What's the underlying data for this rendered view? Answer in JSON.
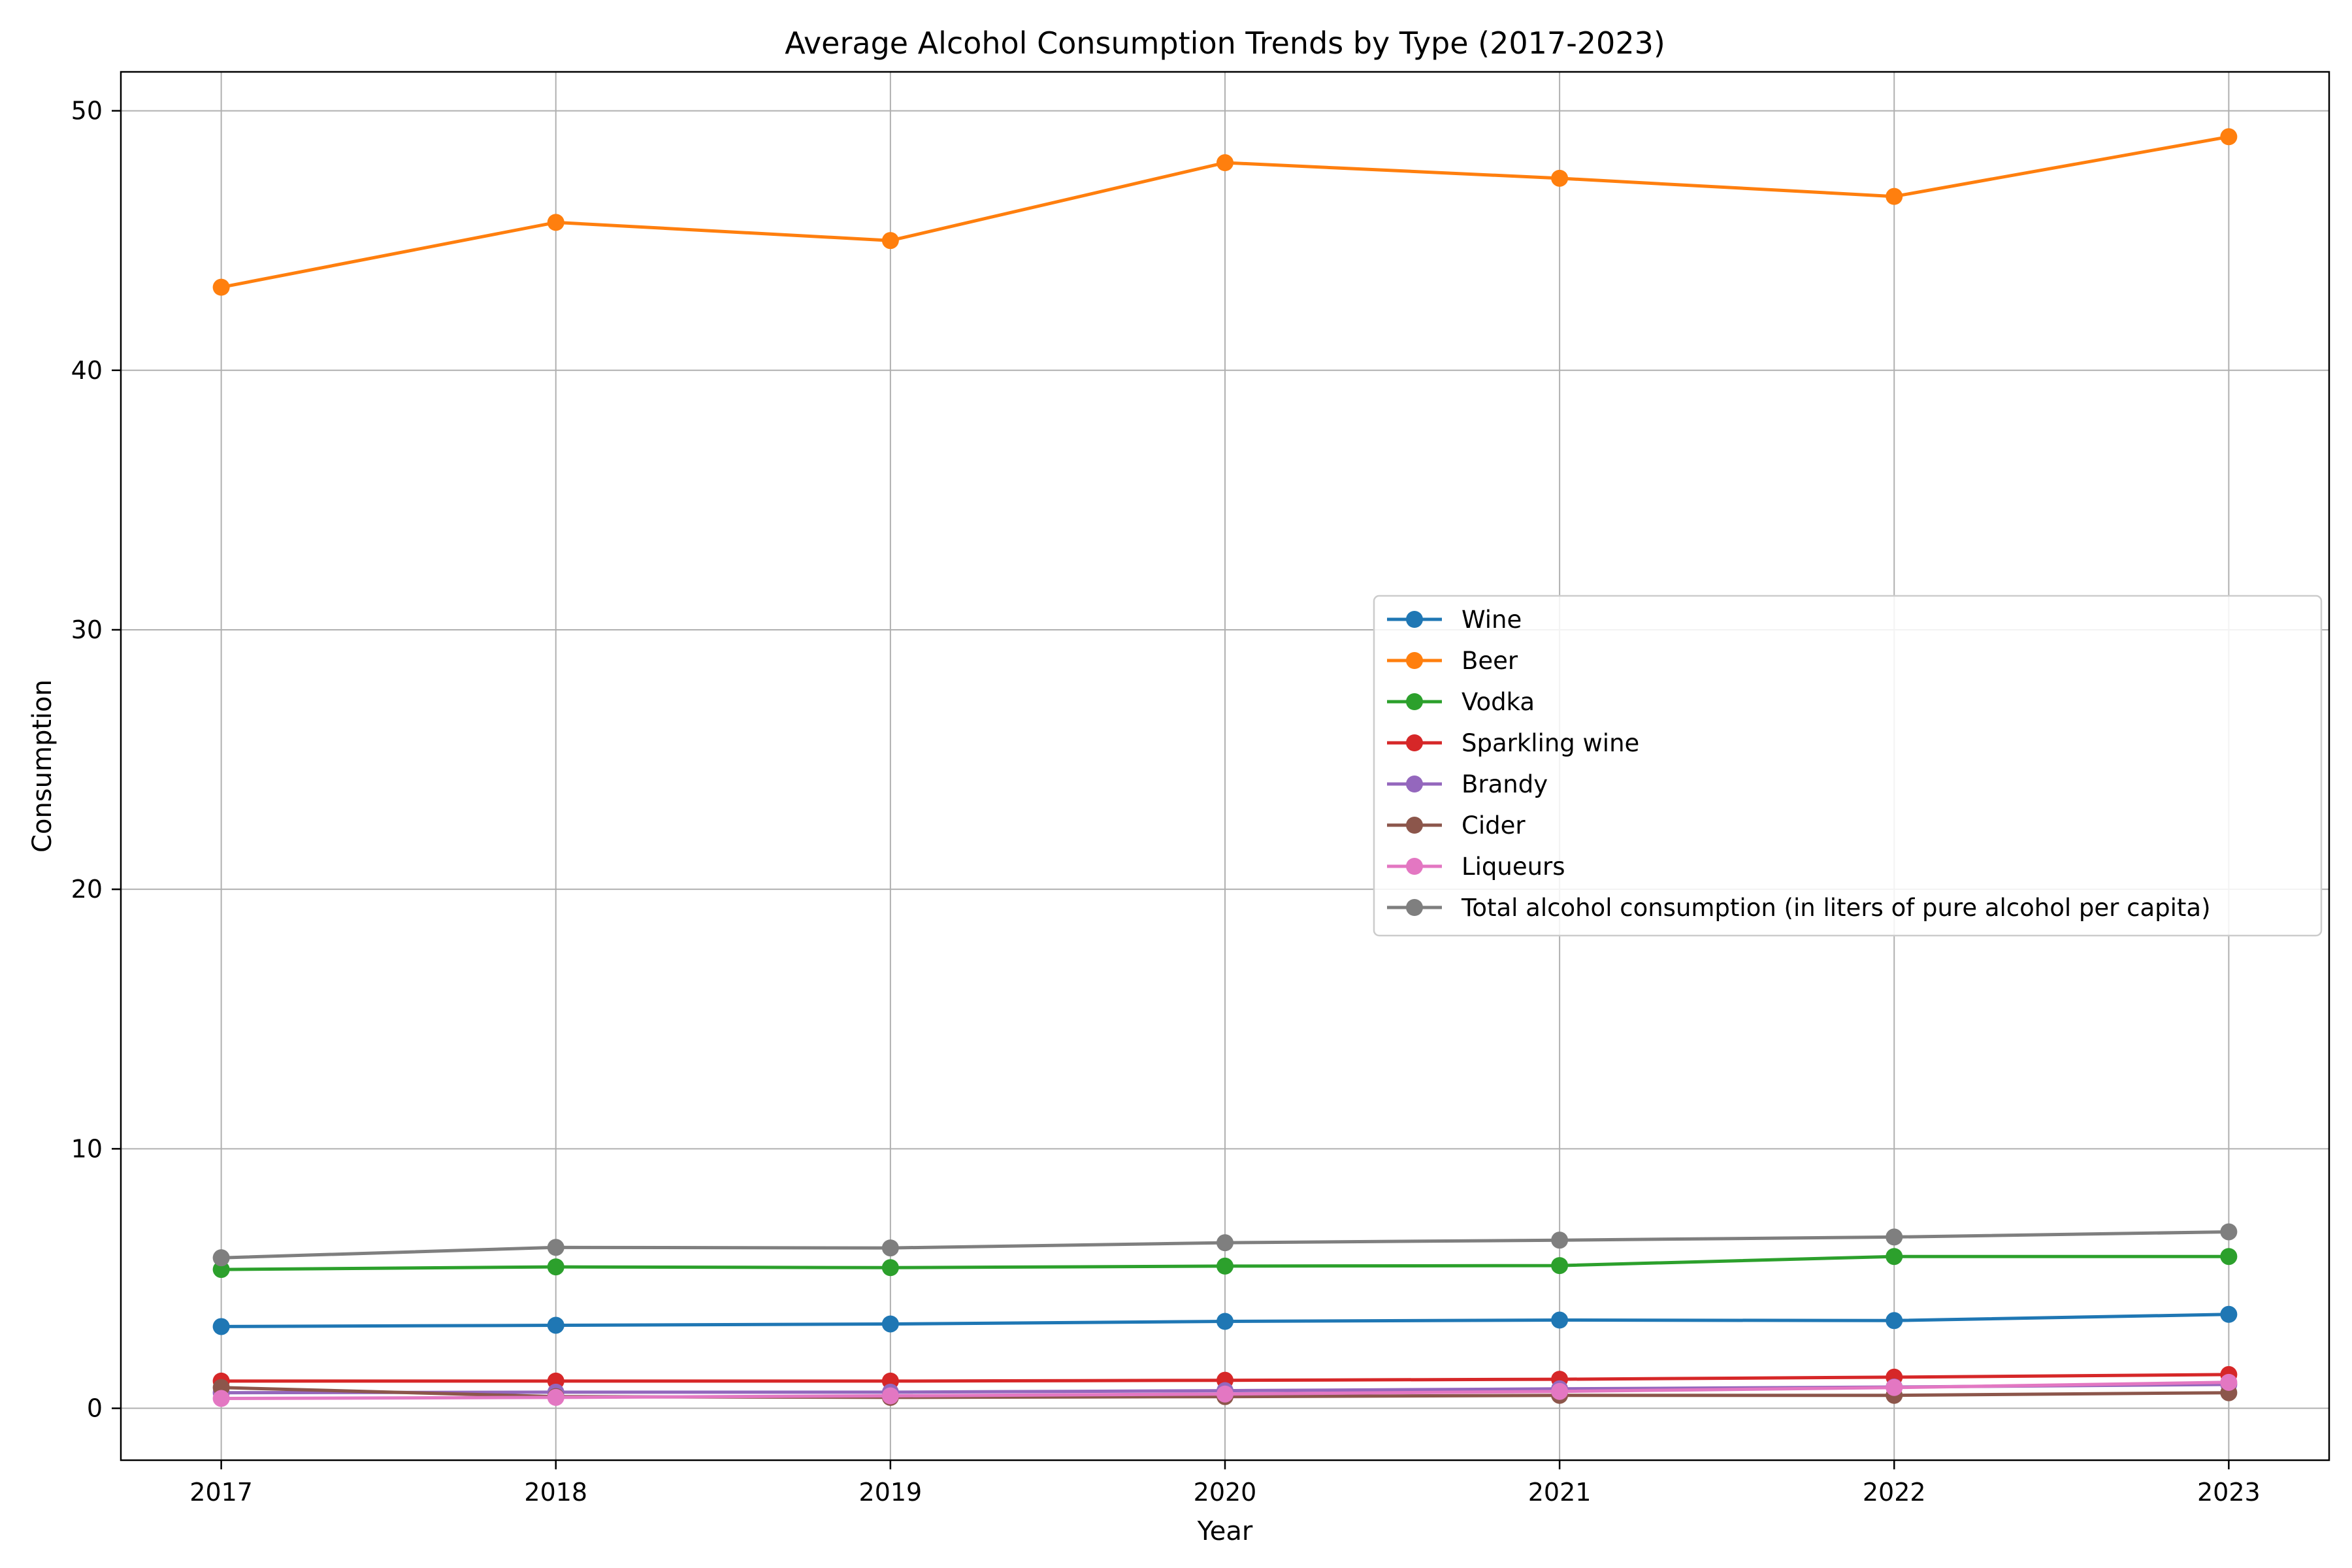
{
  "chart_data": {
    "type": "line",
    "title": "Average Alcohol Consumption Trends by Type (2017-2023)",
    "xlabel": "Year",
    "ylabel": "Consumption",
    "x": [
      2017,
      2018,
      2019,
      2020,
      2021,
      2022,
      2023
    ],
    "ylim": [
      -2,
      51.5
    ],
    "yticks": [
      0,
      10,
      20,
      30,
      40,
      50
    ],
    "grid": true,
    "legend_position": "center-right",
    "series": [
      {
        "name": "Wine",
        "color": "#1f77b4",
        "values": [
          3.15,
          3.2,
          3.25,
          3.35,
          3.4,
          3.38,
          3.62
        ]
      },
      {
        "name": "Beer",
        "color": "#ff7f0e",
        "values": [
          43.2,
          45.7,
          45.0,
          48.0,
          47.4,
          46.7,
          49.0
        ]
      },
      {
        "name": "Vodka",
        "color": "#2ca02c",
        "values": [
          5.35,
          5.45,
          5.42,
          5.48,
          5.5,
          5.85,
          5.85
        ]
      },
      {
        "name": "Sparkling wine",
        "color": "#d62728",
        "values": [
          1.05,
          1.05,
          1.05,
          1.08,
          1.12,
          1.2,
          1.3
        ]
      },
      {
        "name": "Brandy",
        "color": "#9467bd",
        "values": [
          0.6,
          0.62,
          0.62,
          0.68,
          0.75,
          0.82,
          0.92
        ]
      },
      {
        "name": "Cider",
        "color": "#8c564b",
        "values": [
          0.8,
          0.45,
          0.42,
          0.45,
          0.5,
          0.5,
          0.6
        ]
      },
      {
        "name": "Liqueurs",
        "color": "#e377c2",
        "values": [
          0.38,
          0.42,
          0.48,
          0.55,
          0.65,
          0.8,
          1.0
        ]
      },
      {
        "name": "Total alcohol consumption (in liters of pure alcohol per capita)",
        "color": "#7f7f7f",
        "values": [
          5.8,
          6.2,
          6.18,
          6.38,
          6.48,
          6.6,
          6.8
        ]
      }
    ]
  }
}
